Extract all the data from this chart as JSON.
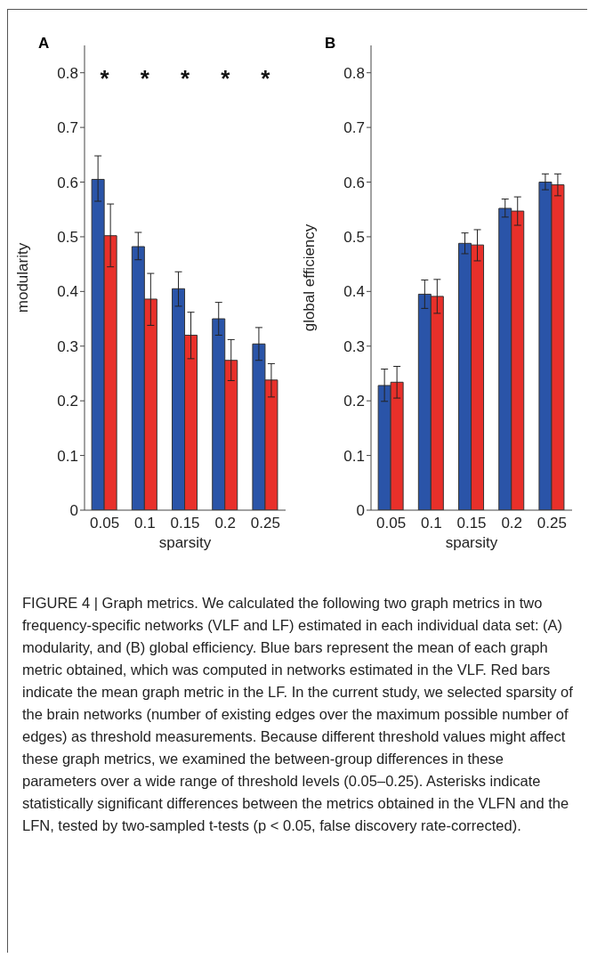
{
  "chart_data": [
    {
      "type": "bar",
      "title": "A",
      "xlabel": "sparsity",
      "ylabel": "modularity",
      "categories": [
        "0.05",
        "0.1",
        "0.15",
        "0.2",
        "0.25"
      ],
      "ylim": [
        0,
        0.85
      ],
      "yticks": [
        0,
        0.1,
        0.2,
        0.3,
        0.4,
        0.5,
        0.6,
        0.7,
        0.8
      ],
      "grid": false,
      "legend": false,
      "series": [
        {
          "color": "#2a54a8",
          "values": [
            0.605,
            0.482,
            0.405,
            0.35,
            0.304
          ],
          "errors": [
            [
              0.565,
              0.648
            ],
            [
              0.458,
              0.508
            ],
            [
              0.373,
              0.436
            ],
            [
              0.32,
              0.38
            ],
            [
              0.274,
              0.334
            ]
          ]
        },
        {
          "color": "#e8302a",
          "values": [
            0.502,
            0.386,
            0.32,
            0.274,
            0.238
          ],
          "errors": [
            [
              0.445,
              0.56
            ],
            [
              0.338,
              0.433
            ],
            [
              0.277,
              0.362
            ],
            [
              0.237,
              0.312
            ],
            [
              0.207,
              0.268
            ]
          ]
        }
      ],
      "annotations": [
        "*",
        "*",
        "*",
        "*",
        "*"
      ]
    },
    {
      "type": "bar",
      "title": "B",
      "xlabel": "sparsity",
      "ylabel": "global efficiency",
      "categories": [
        "0.05",
        "0.1",
        "0.15",
        "0.2",
        "0.25"
      ],
      "ylim": [
        0,
        0.85
      ],
      "yticks": [
        0,
        0.1,
        0.2,
        0.3,
        0.4,
        0.5,
        0.6,
        0.7,
        0.8
      ],
      "grid": false,
      "legend": false,
      "series": [
        {
          "color": "#2a54a8",
          "values": [
            0.228,
            0.395,
            0.488,
            0.552,
            0.6
          ],
          "errors": [
            [
              0.199,
              0.258
            ],
            [
              0.369,
              0.421
            ],
            [
              0.469,
              0.507
            ],
            [
              0.536,
              0.569
            ],
            [
              0.586,
              0.615
            ]
          ]
        },
        {
          "color": "#e8302a",
          "values": [
            0.234,
            0.391,
            0.485,
            0.547,
            0.595
          ],
          "errors": [
            [
              0.205,
              0.263
            ],
            [
              0.36,
              0.422
            ],
            [
              0.456,
              0.513
            ],
            [
              0.521,
              0.573
            ],
            [
              0.575,
              0.615
            ]
          ]
        }
      ]
    },
    {
      "type": "other",
      "annotations": [
        "FIGURE 4 | Graph metrics. We calculated the following two graph metrics in two frequency-specific networks (VLF and LF) estimated in each individual data set: (A) modularity, and (B) global efficiency. Blue bars represent the mean of each graph metric obtained, which was computed in networks estimated in the VLF. Red bars indicate the mean graph metric in the LF. In the current study, we selected sparsity of the brain networks (number of existing edges over the maximum possible number of edges) as threshold measurements. Because different threshold values might affect these graph metrics, we examined the between-group differences in these parameters over a wide range of threshold levels (0.05–0.25). Asterisks indicate statistically significant differences between the metrics obtained in the VLFN and the LFN, tested by two-sampled t-tests (p < 0.05, false discovery rate-corrected)."
      ]
    }
  ]
}
